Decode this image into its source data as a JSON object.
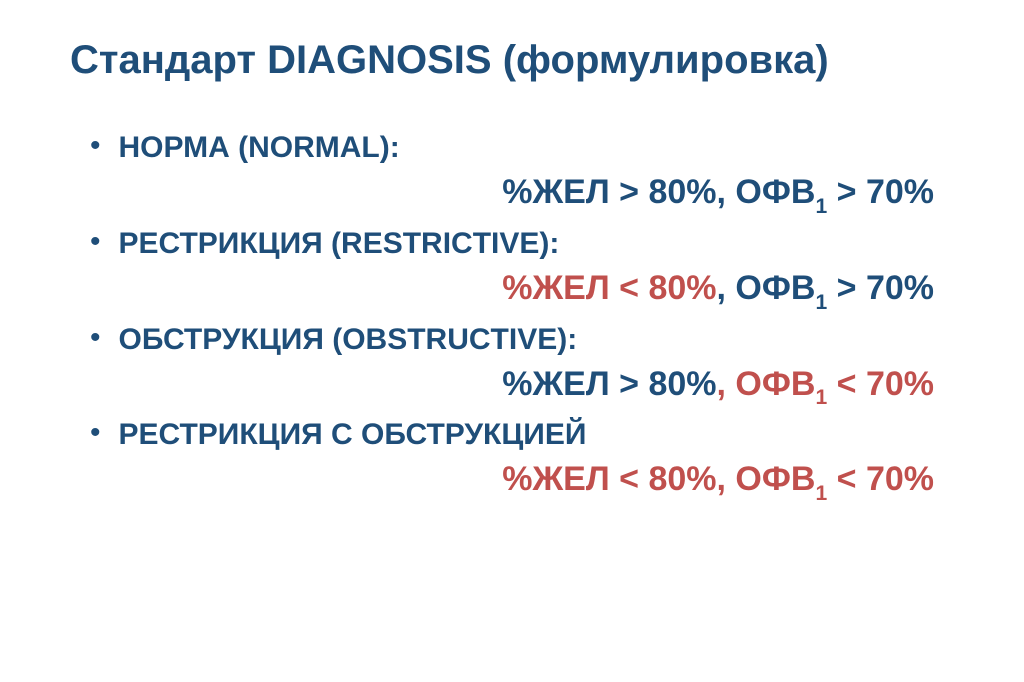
{
  "title": "Стандарт DIAGNOSIS (формулировка)",
  "colors": {
    "blue": "#1f4e79",
    "red": "#c0504d",
    "background": "#ffffff"
  },
  "typography": {
    "title_fontsize": 40,
    "label_fontsize": 30,
    "formula_fontsize": 34,
    "font_family": "Arial"
  },
  "items": [
    {
      "label": "НОРМА (NORMAL):",
      "vc_prefix": "%ЖЕЛ ",
      "vc_op": ">",
      "vc_val": " 80%",
      "vc_color": "blue",
      "fev_prefix": ", ОФВ",
      "fev_sub": "1",
      "fev_op": " > ",
      "fev_val": "70%",
      "fev_color": "blue"
    },
    {
      "label": "РЕСТРИКЦИЯ (RESTRICTIVE):",
      "vc_prefix": "%ЖЕЛ ",
      "vc_op": "<",
      "vc_val": " 80%",
      "vc_color": "red",
      "fev_prefix": ", ОФВ",
      "fev_sub": "1",
      "fev_op": " > ",
      "fev_val": "70%",
      "fev_color": "blue"
    },
    {
      "label": "ОБСТРУКЦИЯ (OBSTRUCTIVE):",
      "vc_prefix": "%ЖЕЛ ",
      "vc_op": ">",
      "vc_val": " 80%",
      "vc_color": "blue",
      "fev_prefix": ", ОФВ",
      "fev_sub": "1",
      "fev_op": " < ",
      "fev_val": "70%",
      "fev_color": "red"
    },
    {
      "label": "РЕСТРИКЦИЯ С ОБСТРУКЦИЕЙ",
      "vc_prefix": "%ЖЕЛ ",
      "vc_op": "<",
      "vc_val": " 80%",
      "vc_color": "red",
      "fev_prefix": ", ОФВ",
      "fev_sub": "1",
      "fev_op": " < ",
      "fev_val": "70%",
      "fev_color": "red"
    }
  ]
}
